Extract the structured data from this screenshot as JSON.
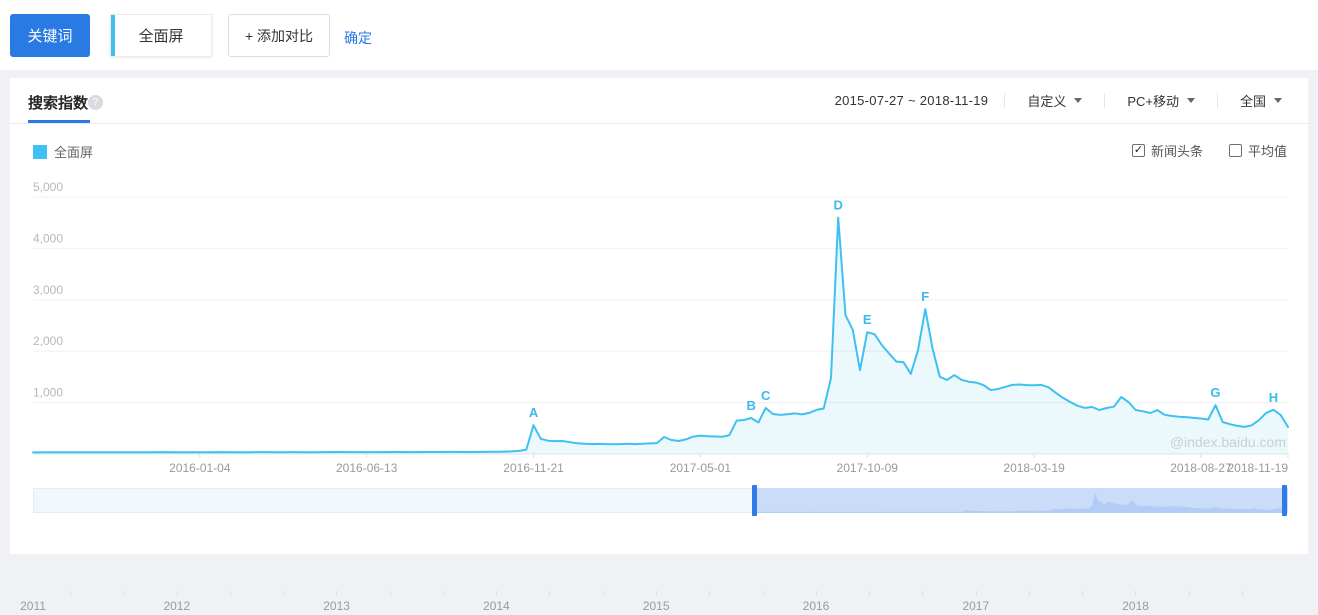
{
  "toolbar": {
    "keyword_label": "关键词",
    "keyword_value": "全面屏",
    "add_compare_label": "+ 添加对比",
    "confirm_label": "确定"
  },
  "icons": {
    "help": "?",
    "check": "✓"
  },
  "panel": {
    "tab_label": "搜索指数",
    "date_range": "2015-07-27 ~ 2018-11-19",
    "filters": [
      {
        "label": "自定义"
      },
      {
        "label": "PC+移动"
      },
      {
        "label": "全国"
      }
    ],
    "legend": {
      "name": "全面屏",
      "color": "#3ec1f0"
    },
    "toggles": [
      {
        "label": "新闻头条",
        "checked": true
      },
      {
        "label": "平均值",
        "checked": false
      }
    ]
  },
  "timeline": {
    "years": [
      "2011",
      "2012",
      "2013",
      "2014",
      "2015",
      "2016",
      "2017",
      "2018"
    ]
  },
  "chart_data": {
    "type": "line",
    "title": "搜索指数",
    "series_name": "全面屏",
    "watermark": "@index.baidu.com",
    "line_color": "#3ec1f0",
    "fill_color": "rgba(62,193,240,0.10)",
    "label_color": "#3cb9ed",
    "ylim": [
      0,
      5000
    ],
    "y_ticks": [
      1000,
      2000,
      3000,
      4000,
      5000
    ],
    "x_range": [
      "2015-07-27",
      "2018-11-19"
    ],
    "x_tick_labels": [
      "2016-01-04",
      "2016-06-13",
      "2016-11-21",
      "2017-05-01",
      "2017-10-09",
      "2018-03-19",
      "2018-08-27",
      "2018-11-19"
    ],
    "annotations": [
      {
        "label": "A",
        "date": "2016-11-21",
        "value": 560
      },
      {
        "label": "B",
        "date": "2017-06-19",
        "value": 700
      },
      {
        "label": "C",
        "date": "2017-07-03",
        "value": 895
      },
      {
        "label": "D",
        "date": "2017-09-11",
        "value": 4600
      },
      {
        "label": "E",
        "date": "2017-10-09",
        "value": 2370
      },
      {
        "label": "F",
        "date": "2017-12-04",
        "value": 2820
      },
      {
        "label": "G",
        "date": "2018-09-10",
        "value": 950
      },
      {
        "label": "H",
        "date": "2018-11-05",
        "value": 860
      }
    ],
    "points": [
      [
        "2015-07-27",
        32
      ],
      [
        "2015-08-10",
        34
      ],
      [
        "2015-08-24",
        33
      ],
      [
        "2015-09-07",
        35
      ],
      [
        "2015-09-21",
        33
      ],
      [
        "2015-10-05",
        34
      ],
      [
        "2015-10-19",
        33
      ],
      [
        "2015-11-02",
        35
      ],
      [
        "2015-11-16",
        34
      ],
      [
        "2015-11-30",
        36
      ],
      [
        "2015-12-14",
        34
      ],
      [
        "2015-12-28",
        35
      ],
      [
        "2016-01-11",
        34
      ],
      [
        "2016-01-25",
        36
      ],
      [
        "2016-02-08",
        33
      ],
      [
        "2016-02-22",
        35
      ],
      [
        "2016-03-07",
        36
      ],
      [
        "2016-03-21",
        35
      ],
      [
        "2016-04-04",
        37
      ],
      [
        "2016-04-18",
        35
      ],
      [
        "2016-05-02",
        36
      ],
      [
        "2016-05-16",
        38
      ],
      [
        "2016-05-30",
        36
      ],
      [
        "2016-06-13",
        37
      ],
      [
        "2016-06-27",
        36
      ],
      [
        "2016-07-11",
        38
      ],
      [
        "2016-07-25",
        37
      ],
      [
        "2016-08-08",
        39
      ],
      [
        "2016-08-22",
        38
      ],
      [
        "2016-09-05",
        40
      ],
      [
        "2016-09-19",
        39
      ],
      [
        "2016-10-03",
        41
      ],
      [
        "2016-10-17",
        44
      ],
      [
        "2016-10-31",
        50
      ],
      [
        "2016-11-07",
        60
      ],
      [
        "2016-11-14",
        85
      ],
      [
        "2016-11-21",
        560
      ],
      [
        "2016-11-28",
        295
      ],
      [
        "2016-12-05",
        258
      ],
      [
        "2016-12-12",
        250
      ],
      [
        "2016-12-19",
        253
      ],
      [
        "2016-12-26",
        230
      ],
      [
        "2017-01-02",
        208
      ],
      [
        "2017-01-09",
        200
      ],
      [
        "2017-01-16",
        193
      ],
      [
        "2017-01-23",
        197
      ],
      [
        "2017-01-30",
        192
      ],
      [
        "2017-02-06",
        188
      ],
      [
        "2017-02-13",
        193
      ],
      [
        "2017-02-20",
        198
      ],
      [
        "2017-02-27",
        193
      ],
      [
        "2017-03-06",
        200
      ],
      [
        "2017-03-13",
        206
      ],
      [
        "2017-03-20",
        212
      ],
      [
        "2017-03-27",
        330
      ],
      [
        "2017-04-03",
        272
      ],
      [
        "2017-04-10",
        252
      ],
      [
        "2017-04-17",
        285
      ],
      [
        "2017-04-24",
        338
      ],
      [
        "2017-05-01",
        358
      ],
      [
        "2017-05-08",
        346
      ],
      [
        "2017-05-15",
        340
      ],
      [
        "2017-05-22",
        334
      ],
      [
        "2017-05-29",
        368
      ],
      [
        "2017-06-05",
        650
      ],
      [
        "2017-06-12",
        662
      ],
      [
        "2017-06-19",
        700
      ],
      [
        "2017-06-26",
        612
      ],
      [
        "2017-07-03",
        895
      ],
      [
        "2017-07-10",
        778
      ],
      [
        "2017-07-17",
        760
      ],
      [
        "2017-07-24",
        775
      ],
      [
        "2017-07-31",
        790
      ],
      [
        "2017-08-07",
        770
      ],
      [
        "2017-08-14",
        800
      ],
      [
        "2017-08-21",
        858
      ],
      [
        "2017-08-28",
        886
      ],
      [
        "2017-09-04",
        1480
      ],
      [
        "2017-09-11",
        4600
      ],
      [
        "2017-09-18",
        2700
      ],
      [
        "2017-09-25",
        2420
      ],
      [
        "2017-10-02",
        1630
      ],
      [
        "2017-10-09",
        2370
      ],
      [
        "2017-10-16",
        2330
      ],
      [
        "2017-10-23",
        2120
      ],
      [
        "2017-10-30",
        1958
      ],
      [
        "2017-11-06",
        1800
      ],
      [
        "2017-11-13",
        1786
      ],
      [
        "2017-11-20",
        1560
      ],
      [
        "2017-11-27",
        2020
      ],
      [
        "2017-12-04",
        2820
      ],
      [
        "2017-12-11",
        2058
      ],
      [
        "2017-12-18",
        1502
      ],
      [
        "2017-12-25",
        1442
      ],
      [
        "2018-01-01",
        1535
      ],
      [
        "2018-01-08",
        1444
      ],
      [
        "2018-01-15",
        1406
      ],
      [
        "2018-01-22",
        1390
      ],
      [
        "2018-01-29",
        1342
      ],
      [
        "2018-02-05",
        1246
      ],
      [
        "2018-02-12",
        1262
      ],
      [
        "2018-02-19",
        1305
      ],
      [
        "2018-02-26",
        1345
      ],
      [
        "2018-03-05",
        1352
      ],
      [
        "2018-03-12",
        1340
      ],
      [
        "2018-03-19",
        1336
      ],
      [
        "2018-03-26",
        1345
      ],
      [
        "2018-04-02",
        1298
      ],
      [
        "2018-04-09",
        1188
      ],
      [
        "2018-04-16",
        1092
      ],
      [
        "2018-04-23",
        1010
      ],
      [
        "2018-04-30",
        938
      ],
      [
        "2018-05-07",
        896
      ],
      [
        "2018-05-14",
        915
      ],
      [
        "2018-05-21",
        856
      ],
      [
        "2018-05-28",
        894
      ],
      [
        "2018-06-04",
        920
      ],
      [
        "2018-06-11",
        1108
      ],
      [
        "2018-06-18",
        1012
      ],
      [
        "2018-06-25",
        856
      ],
      [
        "2018-07-02",
        830
      ],
      [
        "2018-07-09",
        798
      ],
      [
        "2018-07-16",
        854
      ],
      [
        "2018-07-23",
        762
      ],
      [
        "2018-07-30",
        740
      ],
      [
        "2018-08-06",
        726
      ],
      [
        "2018-08-13",
        718
      ],
      [
        "2018-08-20",
        702
      ],
      [
        "2018-08-27",
        690
      ],
      [
        "2018-09-03",
        672
      ],
      [
        "2018-09-10",
        950
      ],
      [
        "2018-09-17",
        622
      ],
      [
        "2018-09-24",
        580
      ],
      [
        "2018-10-01",
        546
      ],
      [
        "2018-10-08",
        528
      ],
      [
        "2018-10-15",
        558
      ],
      [
        "2018-10-22",
        660
      ],
      [
        "2018-10-29",
        800
      ],
      [
        "2018-11-05",
        860
      ],
      [
        "2018-11-12",
        758
      ],
      [
        "2018-11-19",
        525
      ]
    ]
  }
}
